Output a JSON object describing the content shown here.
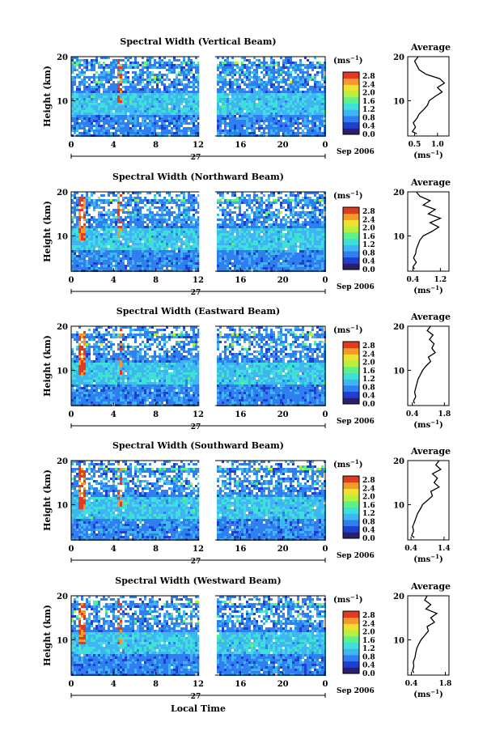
{
  "figure": {
    "xlabel": "Local Time",
    "date_label": "Sep 2006",
    "day_label": "27",
    "avg_title": "Average",
    "colorbar_unit": "(ms",
    "colorbar_unit_exp": "−1",
    "avg_xunit": "(ms",
    "avg_xunit_exp": "−1",
    "ylabel": "Height (km)"
  },
  "chart_data": [
    {
      "type": "heatmap",
      "title": "Spectral Width (Vertical Beam)",
      "ylabel": "Height (km)",
      "xticks": [
        "0",
        "4",
        "8",
        "12",
        "16",
        "20",
        "0"
      ],
      "xlim": [
        0,
        24
      ],
      "yticks": [
        "10",
        "20"
      ],
      "ylim": [
        2,
        20
      ],
      "data_gap_hours": [
        12.1,
        13.6
      ],
      "colorbar": {
        "ticks": [
          "0.0",
          "0.4",
          "0.8",
          "1.2",
          "1.6",
          "2.0",
          "2.4",
          "2.8"
        ],
        "range": [
          0,
          3.0
        ]
      },
      "average_profile": {
        "xticks": [
          "0.5",
          "1.0"
        ],
        "xlim": [
          0.35,
          1.25
        ],
        "height": [
          2.5,
          3,
          4,
          5,
          6,
          7,
          8,
          9,
          10,
          11,
          12,
          13,
          14,
          15,
          16,
          17,
          18,
          19,
          20
        ],
        "value": [
          0.55,
          0.45,
          0.52,
          0.47,
          0.55,
          0.6,
          0.7,
          0.78,
          0.82,
          0.95,
          1.1,
          1.0,
          1.15,
          1.05,
          0.75,
          0.6,
          0.55,
          0.5,
          0.58
        ]
      }
    },
    {
      "type": "heatmap",
      "title": "Spectral Width (Northward Beam)",
      "ylabel": "Height (km)",
      "xticks": [
        "0",
        "4",
        "8",
        "12",
        "16",
        "20",
        "0"
      ],
      "xlim": [
        0,
        24
      ],
      "yticks": [
        "10",
        "20"
      ],
      "ylim": [
        2,
        20
      ],
      "data_gap_hours": [
        12.1,
        13.6
      ],
      "colorbar": {
        "ticks": [
          "0.0",
          "0.4",
          "0.8",
          "1.2",
          "1.6",
          "2.0",
          "2.4",
          "2.8"
        ],
        "range": [
          0,
          3.0
        ]
      },
      "average_profile": {
        "xticks": [
          "0.4",
          "1.2"
        ],
        "xlim": [
          0.25,
          1.45
        ],
        "height": [
          2.5,
          3,
          4,
          5,
          6,
          7,
          8,
          9,
          10,
          11,
          12,
          13,
          14,
          15,
          16,
          17,
          18,
          19,
          20
        ],
        "value": [
          0.45,
          0.4,
          0.5,
          0.42,
          0.48,
          0.5,
          0.55,
          0.6,
          0.7,
          0.95,
          1.15,
          0.9,
          1.2,
          0.85,
          1.05,
          0.7,
          0.9,
          0.6,
          0.5
        ]
      }
    },
    {
      "type": "heatmap",
      "title": "Spectral Width (Eastward Beam)",
      "ylabel": "Height (km)",
      "xticks": [
        "0",
        "4",
        "8",
        "12",
        "16",
        "20",
        "0"
      ],
      "xlim": [
        0,
        24
      ],
      "yticks": [
        "10",
        "20"
      ],
      "ylim": [
        2,
        20
      ],
      "data_gap_hours": [
        12.1,
        13.6
      ],
      "colorbar": {
        "ticks": [
          "0.0",
          "0.4",
          "0.8",
          "1.2",
          "1.6",
          "2.0",
          "2.4",
          "2.8"
        ],
        "range": [
          0,
          3.0
        ]
      },
      "average_profile": {
        "xticks": [
          "0.4",
          "1.8"
        ],
        "xlim": [
          0.2,
          2.0
        ],
        "height": [
          2.5,
          3,
          4,
          5,
          6,
          7,
          8,
          9,
          10,
          11,
          12,
          13,
          14,
          15,
          16,
          17,
          18,
          19,
          20
        ],
        "value": [
          0.5,
          0.45,
          0.55,
          0.5,
          0.55,
          0.6,
          0.65,
          0.75,
          0.85,
          1.0,
          1.2,
          1.1,
          1.4,
          1.25,
          1.35,
          1.15,
          1.3,
          1.05,
          1.2
        ]
      }
    },
    {
      "type": "heatmap",
      "title": "Spectral Width (Southward Beam)",
      "ylabel": "Height (km)",
      "xticks": [
        "0",
        "4",
        "8",
        "12",
        "16",
        "20",
        "0"
      ],
      "xlim": [
        0,
        24
      ],
      "yticks": [
        "10",
        "20"
      ],
      "ylim": [
        2,
        20
      ],
      "data_gap_hours": [
        12.1,
        13.6
      ],
      "colorbar": {
        "ticks": [
          "0.0",
          "0.4",
          "0.8",
          "1.2",
          "1.6",
          "2.0",
          "2.4",
          "2.8"
        ],
        "range": [
          0,
          3.0
        ]
      },
      "average_profile": {
        "xticks": [
          "0.4",
          "1.4"
        ],
        "xlim": [
          0.3,
          1.55
        ],
        "height": [
          2.5,
          3,
          4,
          5,
          6,
          7,
          8,
          9,
          10,
          11,
          12,
          13,
          14,
          15,
          16,
          17,
          18,
          19,
          20
        ],
        "value": [
          0.5,
          0.42,
          0.48,
          0.45,
          0.5,
          0.55,
          0.6,
          0.68,
          0.75,
          0.9,
          1.05,
          1.0,
          1.25,
          1.1,
          1.2,
          1.05,
          1.3,
          1.15,
          1.25
        ]
      }
    },
    {
      "type": "heatmap",
      "title": "Spectral Width (Westward Beam)",
      "ylabel": "Height (km)",
      "xticks": [
        "0",
        "4",
        "8",
        "12",
        "16",
        "20",
        "0"
      ],
      "xlim": [
        0,
        24
      ],
      "yticks": [
        "10",
        "20"
      ],
      "ylim": [
        2,
        20
      ],
      "data_gap_hours": [
        12.1,
        13.6
      ],
      "colorbar": {
        "ticks": [
          "0.0",
          "0.4",
          "0.8",
          "1.2",
          "1.6",
          "2.0",
          "2.4",
          "2.8"
        ],
        "range": [
          0,
          3.0
        ]
      },
      "average_profile": {
        "xticks": [
          "0.4",
          "1.8"
        ],
        "xlim": [
          0.25,
          1.95
        ],
        "height": [
          2.5,
          3,
          4,
          5,
          6,
          7,
          8,
          9,
          10,
          11,
          12,
          13,
          14,
          15,
          16,
          17,
          18,
          19,
          20
        ],
        "value": [
          0.5,
          0.45,
          0.5,
          0.48,
          0.55,
          0.58,
          0.62,
          0.7,
          0.8,
          0.95,
          1.1,
          1.05,
          1.35,
          1.2,
          1.45,
          1.0,
          1.2,
          0.95,
          1.05
        ]
      }
    }
  ],
  "colors": {
    "colormap": [
      "#2a1f6e",
      "#1f3fd0",
      "#2f7ff0",
      "#3fb6f3",
      "#3fe0d8",
      "#5ff08a",
      "#b8f040",
      "#f0e030",
      "#f49a2a",
      "#e03a22"
    ],
    "background": "#ffffff"
  }
}
